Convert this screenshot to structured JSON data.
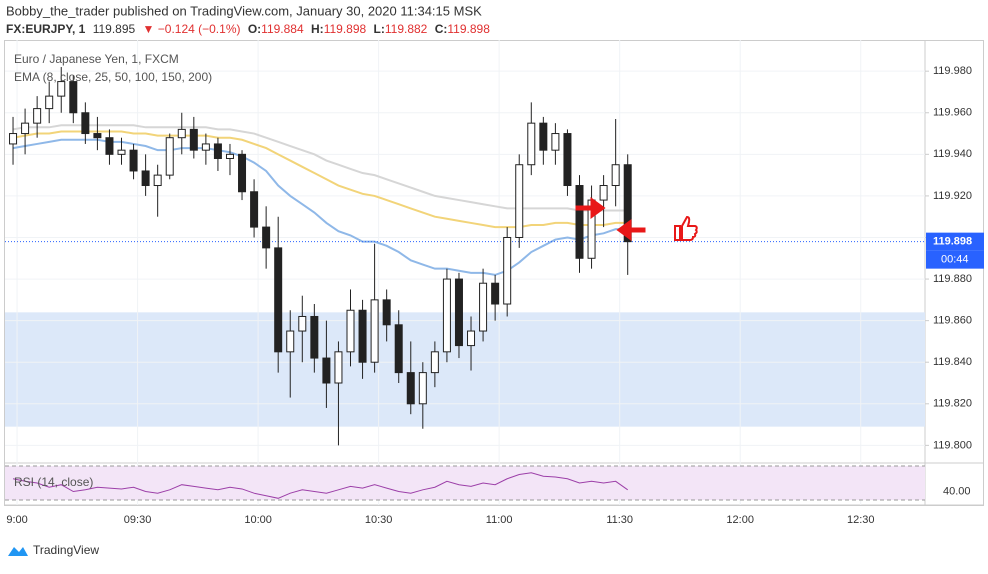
{
  "header": {
    "publisher": "Bobby_the_trader published on TradingView.com, January 30, 2020 11:34:15 MSK",
    "symbol": "FX:EURJPY, 1",
    "last": "119.895",
    "change": "▼ −0.124 (−0.1%)",
    "open_label": "O:",
    "open": "119.884",
    "high_label": "H:",
    "high": "119.898",
    "low_label": "L:",
    "low": "119.882",
    "close_label": "C:",
    "close": "119.898"
  },
  "footer": {
    "brand": "TradingView"
  },
  "chart_data": {
    "type": "candlestick",
    "title": "Euro / Japanese Yen, 1, FXCM",
    "indicator_label": "EMA (8, close, 25, 50, 100, 150, 200)",
    "x": [
      "08:59",
      "09:02",
      "09:05",
      "09:08",
      "09:11",
      "09:14",
      "09:17",
      "09:20",
      "09:23",
      "09:26",
      "09:29",
      "09:32",
      "09:35",
      "09:38",
      "09:41",
      "09:44",
      "09:47",
      "09:50",
      "09:53",
      "09:56",
      "09:59",
      "10:02",
      "10:05",
      "10:08",
      "10:11",
      "10:14",
      "10:17",
      "10:20",
      "10:23",
      "10:26",
      "10:29",
      "10:32",
      "10:35",
      "10:38",
      "10:41",
      "10:44",
      "10:47",
      "10:50",
      "10:53",
      "10:56",
      "10:59",
      "11:02",
      "11:05",
      "11:08",
      "11:11",
      "11:14",
      "11:17",
      "11:20",
      "11:23",
      "11:26",
      "11:29",
      "11:32"
    ],
    "open": [
      119.945,
      119.95,
      119.955,
      119.962,
      119.968,
      119.975,
      119.96,
      119.95,
      119.948,
      119.94,
      119.942,
      119.932,
      119.925,
      119.93,
      119.948,
      119.952,
      119.942,
      119.945,
      119.938,
      119.94,
      119.922,
      119.905,
      119.895,
      119.845,
      119.855,
      119.862,
      119.842,
      119.83,
      119.845,
      119.865,
      119.84,
      119.87,
      119.858,
      119.835,
      119.82,
      119.835,
      119.845,
      119.88,
      119.848,
      119.855,
      119.878,
      119.868,
      119.9,
      119.935,
      119.955,
      119.942,
      119.95,
      119.925,
      119.89,
      119.918,
      119.925,
      119.935
    ],
    "high": [
      119.958,
      119.962,
      119.968,
      119.975,
      119.982,
      119.978,
      119.965,
      119.958,
      119.952,
      119.948,
      119.945,
      119.94,
      119.935,
      119.95,
      119.96,
      119.958,
      119.95,
      119.948,
      119.945,
      119.942,
      119.928,
      119.915,
      119.91,
      119.865,
      119.872,
      119.868,
      119.86,
      119.85,
      119.875,
      119.87,
      119.897,
      119.875,
      119.865,
      119.85,
      119.84,
      119.85,
      119.885,
      119.883,
      119.862,
      119.885,
      119.882,
      119.905,
      119.94,
      119.965,
      119.958,
      119.955,
      119.952,
      119.93,
      119.925,
      119.93,
      119.957,
      119.94
    ],
    "low": [
      119.935,
      119.94,
      119.948,
      119.955,
      119.96,
      119.955,
      119.945,
      119.942,
      119.935,
      119.935,
      119.928,
      119.92,
      119.91,
      119.928,
      119.94,
      119.938,
      119.935,
      119.932,
      119.93,
      119.918,
      119.9,
      119.885,
      119.835,
      119.823,
      119.84,
      119.835,
      119.818,
      119.8,
      119.838,
      119.832,
      119.835,
      119.85,
      119.83,
      119.815,
      119.808,
      119.828,
      119.84,
      119.842,
      119.836,
      119.85,
      119.86,
      119.862,
      119.895,
      119.93,
      119.935,
      119.935,
      119.92,
      119.883,
      119.885,
      119.905,
      119.915,
      119.882
    ],
    "close": [
      119.95,
      119.955,
      119.962,
      119.968,
      119.975,
      119.96,
      119.95,
      119.948,
      119.94,
      119.942,
      119.932,
      119.925,
      119.93,
      119.948,
      119.952,
      119.942,
      119.945,
      119.938,
      119.94,
      119.922,
      119.905,
      119.895,
      119.845,
      119.855,
      119.862,
      119.842,
      119.83,
      119.845,
      119.865,
      119.84,
      119.87,
      119.858,
      119.835,
      119.82,
      119.835,
      119.845,
      119.88,
      119.848,
      119.855,
      119.878,
      119.868,
      119.9,
      119.935,
      119.955,
      119.942,
      119.95,
      119.925,
      119.89,
      119.918,
      119.925,
      119.935,
      119.898
    ],
    "ema": [
      {
        "color": "#8fb8e8",
        "values": [
          119.943,
          119.944,
          119.945,
          119.946,
          119.947,
          119.947,
          119.947,
          119.947,
          119.946,
          119.946,
          119.945,
          119.944,
          119.942,
          119.942,
          119.943,
          119.943,
          119.943,
          119.942,
          119.941,
          119.939,
          119.936,
          119.932,
          119.925,
          119.92,
          119.916,
          119.912,
          119.907,
          119.903,
          119.901,
          119.898,
          119.898,
          119.896,
          119.893,
          119.889,
          119.887,
          119.885,
          119.885,
          119.884,
          119.883,
          119.883,
          119.882,
          119.884,
          119.888,
          119.893,
          119.896,
          119.899,
          119.9,
          119.899,
          119.901,
          119.902,
          119.904,
          119.904
        ]
      },
      {
        "color": "#f2d479",
        "values": [
          119.948,
          119.949,
          119.95,
          119.95,
          119.951,
          119.951,
          119.951,
          119.951,
          119.951,
          119.951,
          119.95,
          119.95,
          119.949,
          119.949,
          119.949,
          119.949,
          119.949,
          119.948,
          119.948,
          119.947,
          119.945,
          119.943,
          119.94,
          119.937,
          119.934,
          119.931,
          119.928,
          119.925,
          119.923,
          119.921,
          119.92,
          119.918,
          119.916,
          119.914,
          119.912,
          119.91,
          119.909,
          119.908,
          119.907,
          119.906,
          119.905,
          119.905,
          119.905,
          119.906,
          119.906,
          119.907,
          119.907,
          119.906,
          119.906,
          119.906,
          119.907,
          119.907
        ]
      },
      {
        "color": "#d6d6d6",
        "values": [
          119.952,
          119.953,
          119.953,
          119.953,
          119.954,
          119.954,
          119.954,
          119.954,
          119.954,
          119.954,
          119.954,
          119.953,
          119.953,
          119.953,
          119.953,
          119.953,
          119.953,
          119.952,
          119.952,
          119.951,
          119.95,
          119.948,
          119.946,
          119.944,
          119.942,
          119.94,
          119.937,
          119.935,
          119.933,
          119.931,
          119.93,
          119.928,
          119.926,
          119.924,
          119.922,
          119.92,
          119.919,
          119.918,
          119.917,
          119.916,
          119.915,
          119.914,
          119.914,
          119.914,
          119.914,
          119.914,
          119.914,
          119.913,
          119.913,
          119.913,
          119.913,
          119.913
        ]
      }
    ],
    "zone": [
      119.809,
      119.864
    ],
    "price_line": {
      "value": 119.898,
      "label": "119.898"
    },
    "countdown": "00:44",
    "xlim": [
      "08:57",
      "12:46"
    ],
    "xticks": [
      "9:00",
      "09:30",
      "10:00",
      "10:30",
      "11:00",
      "11:30",
      "12:00",
      "12:30"
    ],
    "ylim": [
      119.792,
      119.995
    ],
    "yticks": [
      {
        "value": 119.8,
        "label": "119.800"
      },
      {
        "value": 119.82,
        "label": "119.820"
      },
      {
        "value": 119.84,
        "label": "119.840"
      },
      {
        "value": 119.86,
        "label": "119.860"
      },
      {
        "value": 119.88,
        "label": "119.880"
      },
      {
        "value": 119.9,
        "label": "119.900"
      },
      {
        "value": 119.92,
        "label": "119.920"
      },
      {
        "value": 119.94,
        "label": "119.940"
      },
      {
        "value": 119.96,
        "label": "119.960"
      },
      {
        "value": 119.98,
        "label": "119.980"
      }
    ],
    "rsi": {
      "label": "RSI (14, close)",
      "color": "#9c3fa8",
      "ylim": [
        30,
        70
      ],
      "yticks": [
        {
          "value": 40,
          "label": "40.00"
        }
      ],
      "values": [
        55,
        52,
        50,
        45,
        48,
        40,
        42,
        45,
        44,
        43,
        45,
        40,
        38,
        42,
        48,
        46,
        44,
        42,
        45,
        43,
        38,
        35,
        32,
        38,
        42,
        40,
        38,
        42,
        46,
        44,
        48,
        44,
        40,
        38,
        42,
        45,
        52,
        48,
        46,
        50,
        48,
        55,
        60,
        62,
        58,
        57,
        55,
        50,
        52,
        50,
        52,
        42
      ]
    }
  }
}
